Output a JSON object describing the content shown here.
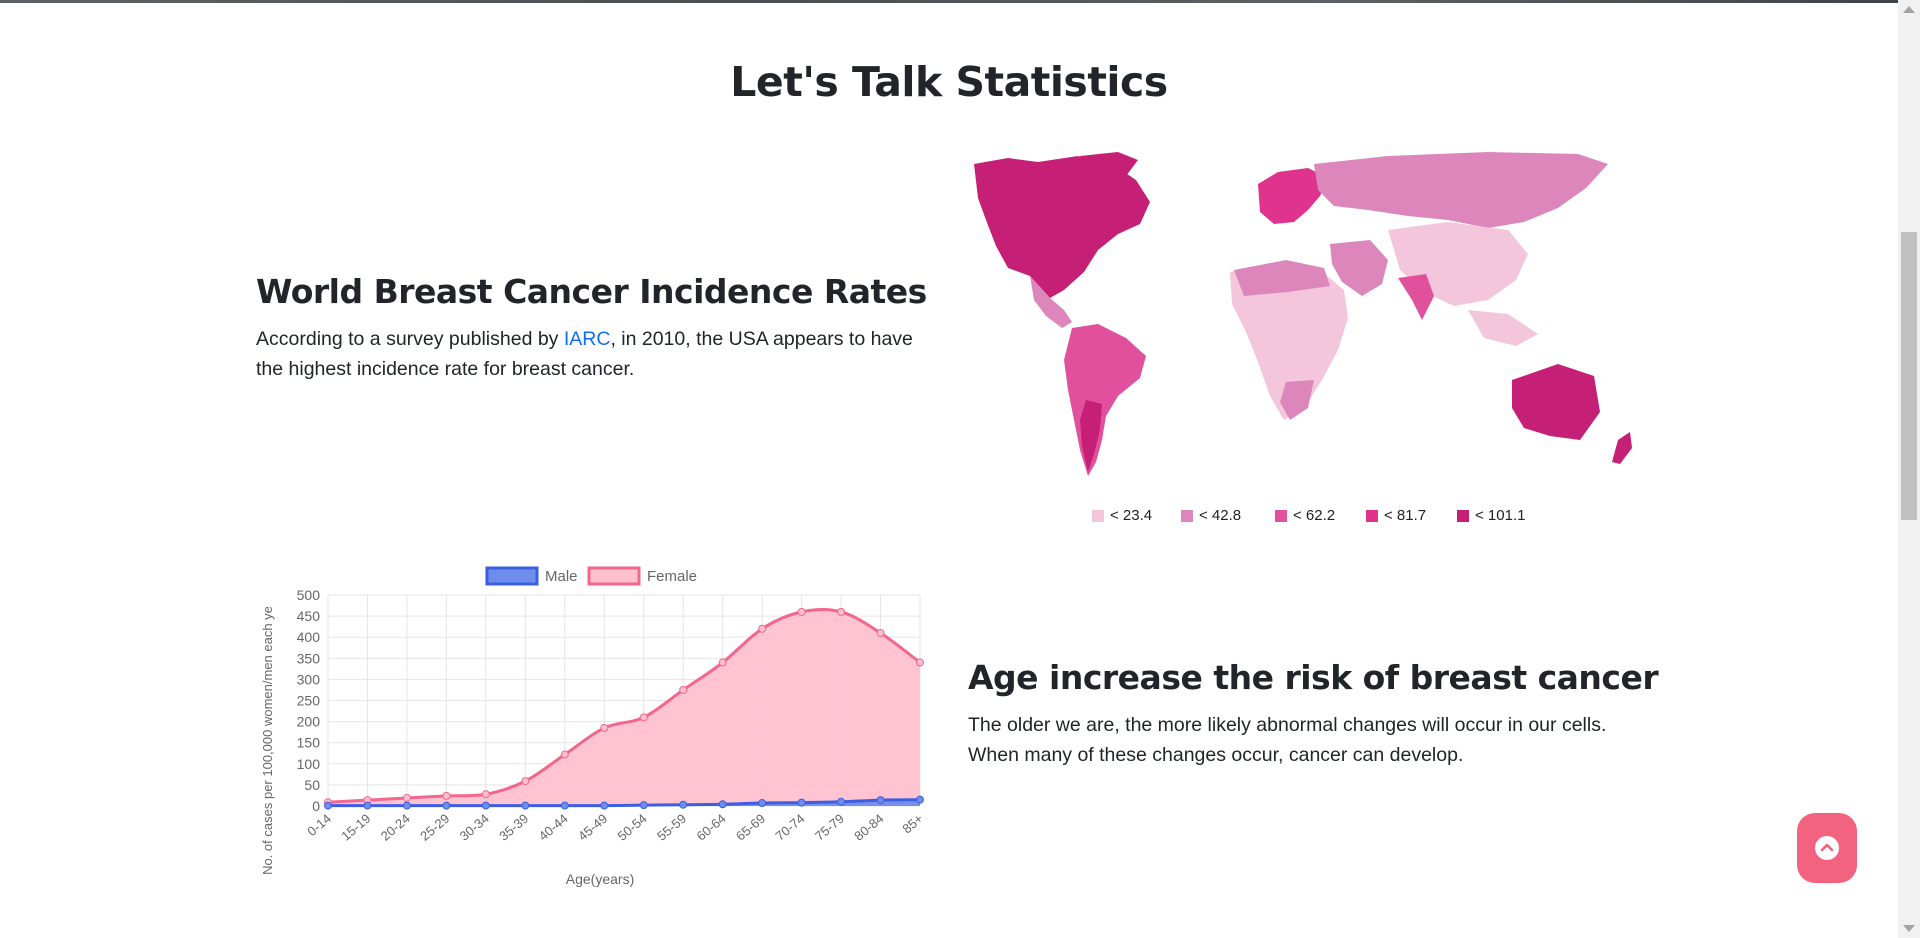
{
  "page": {
    "title": "Let's Talk Statistics"
  },
  "incidence": {
    "heading": "World Breast Cancer Incidence Rates",
    "text_before": "According to a survey published by ",
    "link_text": "IARC",
    "text_after": ", in 2010, the USA appears to have the highest incidence rate for breast cancer.",
    "map_legend": [
      "< 23.4",
      "< 42.8",
      "< 62.2",
      "< 81.7",
      "< 101.1"
    ],
    "map_legend_colors": [
      "#f3c6dc",
      "#dc86bb",
      "#e0509d",
      "#e0338d",
      "#c51f76"
    ]
  },
  "age": {
    "heading": "Age increase the risk of breast cancer",
    "text": "The older we are, the more likely abnormal changes will occur in our cells. When many of these changes occur, cancer can develop."
  },
  "chart_data": {
    "type": "line",
    "xlabel": "Age(years)",
    "ylabel": "No. of cases per 100,000 women/men each ye",
    "categories": [
      "0-14",
      "15-19",
      "20-24",
      "25-29",
      "30-34",
      "35-39",
      "40-44",
      "45-49",
      "50-54",
      "55-59",
      "60-64",
      "65-69",
      "70-74",
      "75-79",
      "80-84",
      "85+"
    ],
    "ylim": [
      0,
      500
    ],
    "yticks": [
      0,
      50,
      100,
      150,
      200,
      250,
      300,
      350,
      400,
      450,
      500
    ],
    "grid": true,
    "legend_position": "top",
    "series": [
      {
        "name": "Male",
        "values": [
          1,
          1,
          1,
          1,
          1,
          1,
          1,
          1,
          2,
          3,
          4,
          7,
          8,
          10,
          14,
          15
        ],
        "color": "#3b5fe0",
        "fill": "#6f8ded"
      },
      {
        "name": "Female",
        "values": [
          9,
          14,
          19,
          24,
          28,
          59,
          122,
          185,
          210,
          275,
          340,
          420,
          460,
          460,
          410,
          340
        ],
        "color": "#f4668e",
        "fill": "#ffc0cf"
      }
    ]
  },
  "back_to_top": {
    "icon": "chevron-up-icon",
    "color": "#f3627f"
  }
}
